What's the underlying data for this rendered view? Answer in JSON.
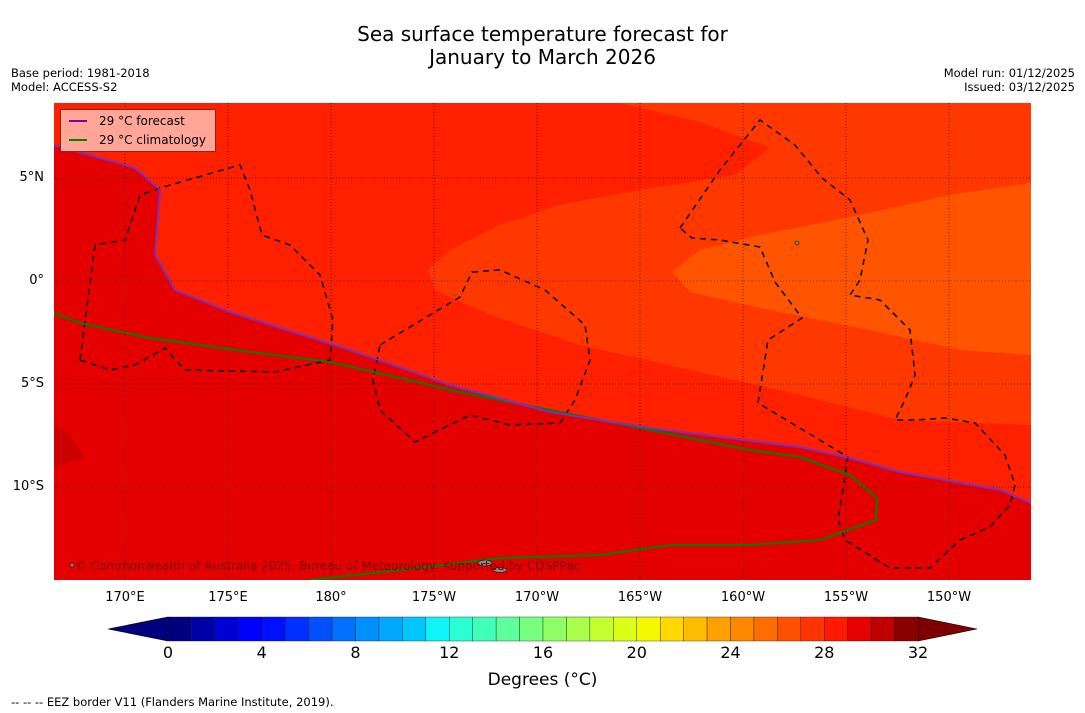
{
  "title": {
    "line1": "Sea surface temperature forecast for",
    "line2": "January to March 2026"
  },
  "meta_left": {
    "base_period": "Base period: 1981-2018",
    "model": "Model: ACCESS-S2"
  },
  "meta_right": {
    "model_run": "Model run: 01/12/2025",
    "issued": "Issued: 03/12/2025"
  },
  "legend": [
    {
      "label": "29 °C  forecast",
      "color": "#8000a0"
    },
    {
      "label": "29 °C  climatology",
      "color": "#008000"
    }
  ],
  "lon_labels": [
    "170°E",
    "175°E",
    "180°",
    "175°W",
    "170°W",
    "165°W",
    "160°W",
    "155°W",
    "150°W"
  ],
  "lat_labels": [
    "5°N",
    "0°",
    "5°S",
    "10°S"
  ],
  "copyright": "© Commonwealth of Australia 2025, Bureau of Meteorology, supported by COSPPac",
  "colorbar": {
    "ticks": [
      "0",
      "4",
      "8",
      "12",
      "16",
      "20",
      "24",
      "28",
      "32"
    ],
    "label": "Degrees (°C)",
    "min": 0,
    "max": 32,
    "colors": [
      "#00007f",
      "#0000a8",
      "#0000d4",
      "#0000ff",
      "#0010ff",
      "#0030ff",
      "#0050ff",
      "#0070ff",
      "#0090ff",
      "#00a8ff",
      "#00c8ff",
      "#0ef4f8",
      "#2affd4",
      "#40ffb8",
      "#5cff9c",
      "#76ff80",
      "#90ff66",
      "#aaff4c",
      "#c4ff32",
      "#dcff18",
      "#f4f800",
      "#ffd800",
      "#ffbc00",
      "#ffa000",
      "#ff8800",
      "#ff6c00",
      "#ff5000",
      "#ff3400",
      "#ff1a00",
      "#e60000",
      "#c00000",
      "#8a0000"
    ],
    "under_color": "#00007f",
    "over_color": "#7f0000"
  },
  "field_colors": {
    "t28_29": "#ff2000",
    "t27_28": "#ff3800",
    "t26_27": "#ff5500",
    "t29_30": "#e50000",
    "t30_31": "#cc0000"
  },
  "footnote": "--  --  -- EEZ border V11 (Flanders Marine Institute, 2019)."
}
